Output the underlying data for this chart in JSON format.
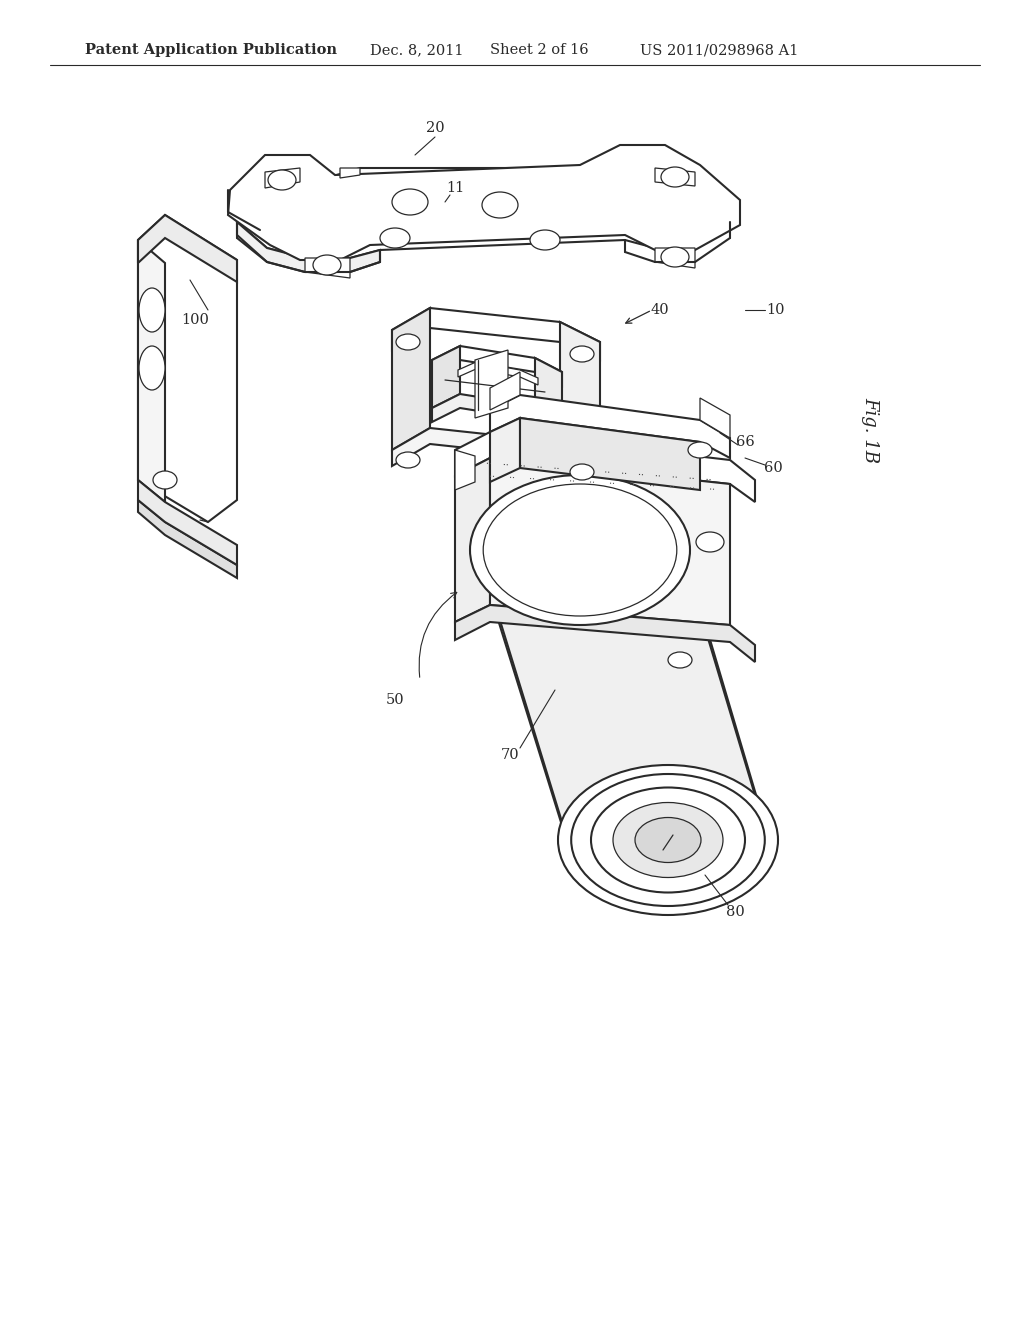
{
  "background_color": "#ffffff",
  "header_text": "Patent Application Publication",
  "header_date": "Dec. 8, 2011",
  "header_sheet": "Sheet 2 of 16",
  "header_patent": "US 2011/0298968 A1",
  "fig_label": "Fig. 1B",
  "line_color": "#2a2a2a",
  "line_width": 1.5,
  "thin_lw": 0.9,
  "label_fontsize": 10.5,
  "header_fontsize": 10.5
}
